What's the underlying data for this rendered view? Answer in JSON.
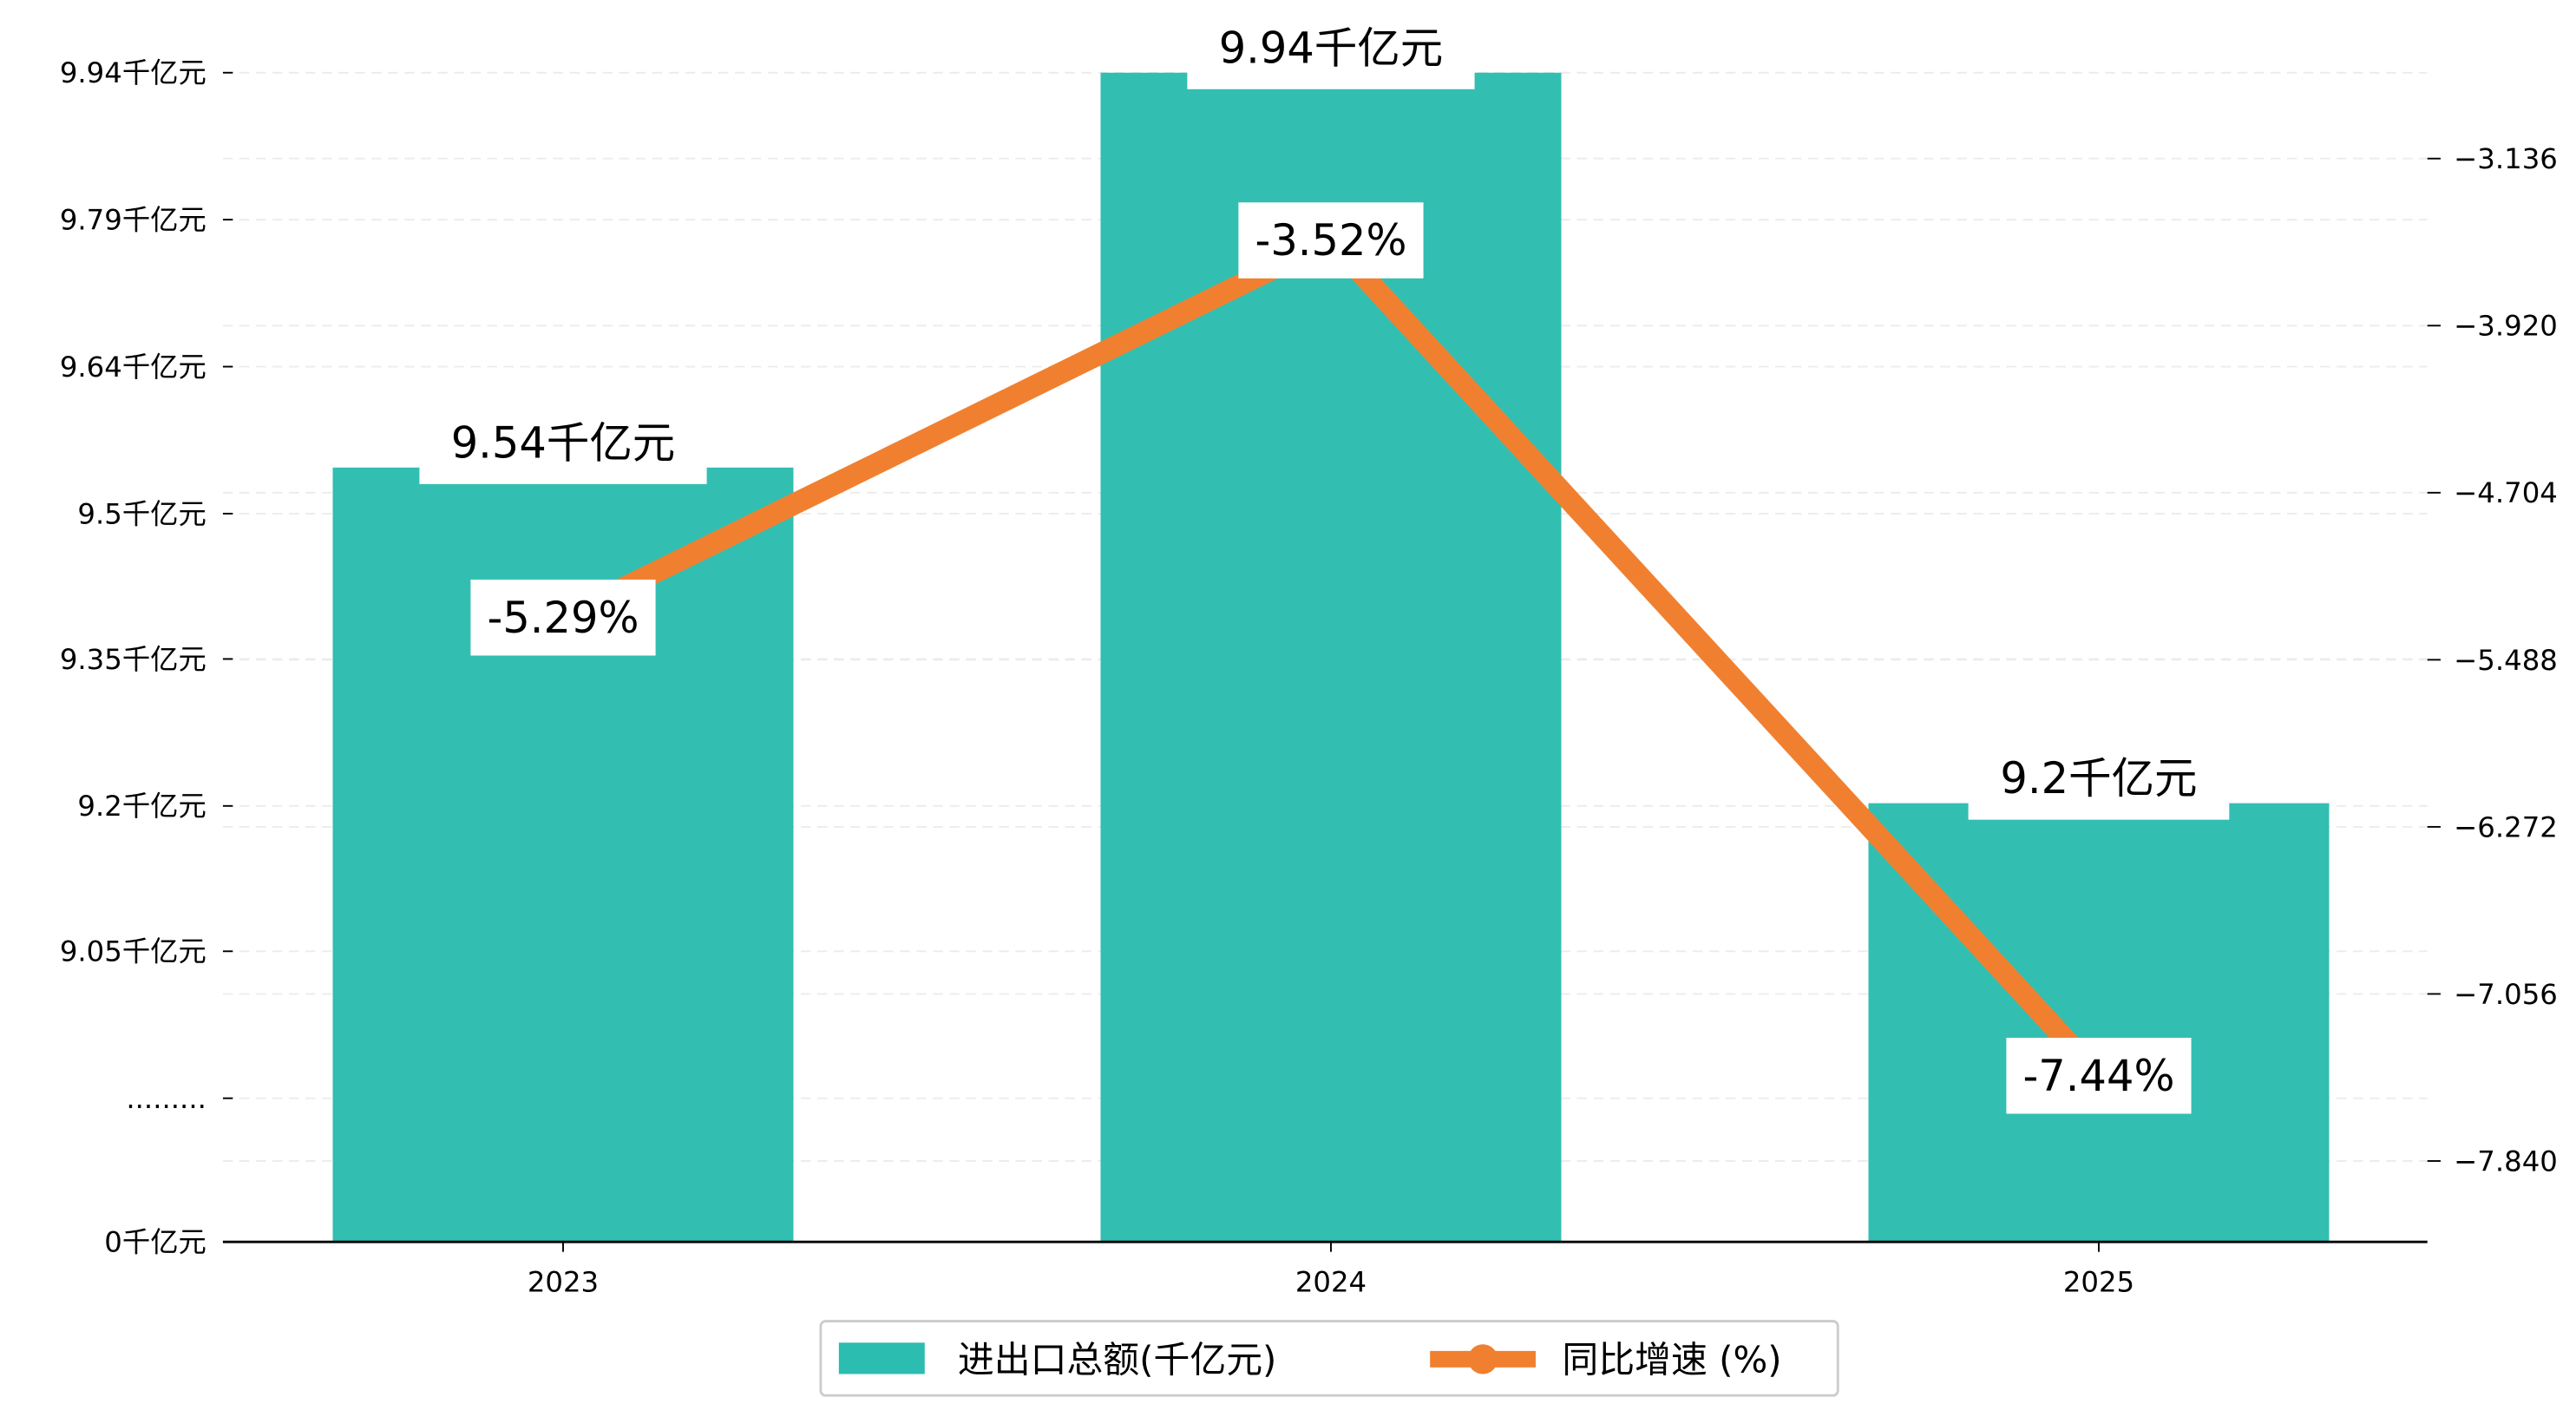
{
  "chart_data": {
    "type": "bar+line",
    "categories": [
      "2023",
      "2024",
      "2025"
    ],
    "series": [
      {
        "name": "进出口总额(千亿元)",
        "type": "bar",
        "axis": "left",
        "values": [
          9.54,
          9.94,
          9.2
        ],
        "labels": [
          "9.54千亿元",
          "9.94千亿元",
          "9.2千亿元"
        ],
        "color": "#2bbdb0"
      },
      {
        "name": "同比增速 (%)",
        "type": "line",
        "axis": "right",
        "values": [
          -5.29,
          -3.52,
          -7.44
        ],
        "labels": [
          "-5.29%",
          "-3.52%",
          "-7.44%"
        ],
        "color": "#f08030"
      }
    ],
    "left_axis": {
      "broken": true,
      "ticks": [
        {
          "value": 9.94,
          "label": "9.94千亿元"
        },
        {
          "value": 9.79,
          "label": "9.79千亿元"
        },
        {
          "value": 9.64,
          "label": "9.64千亿元"
        },
        {
          "value": 9.5,
          "label": "9.5千亿元"
        },
        {
          "value": 9.35,
          "label": "9.35千亿元"
        },
        {
          "value": 9.2,
          "label": "9.2千亿元"
        },
        {
          "value": 9.05,
          "label": "9.05千亿元"
        },
        {
          "value": null,
          "label": "........."
        },
        {
          "value": 0,
          "label": "0千亿元"
        }
      ]
    },
    "right_axis": {
      "ticks": [
        "-3.136",
        "-3.920",
        "-4.704",
        "-5.488",
        "-6.272",
        "-7.056",
        "-7.840"
      ],
      "tick_values": [
        -3.136,
        -3.92,
        -4.704,
        -5.488,
        -6.272,
        -7.056,
        -7.84
      ]
    },
    "grid": true,
    "legend": {
      "position": "bottom-center",
      "entries": [
        "进出口总额(千亿元)",
        "同比增速 (%)"
      ]
    }
  }
}
